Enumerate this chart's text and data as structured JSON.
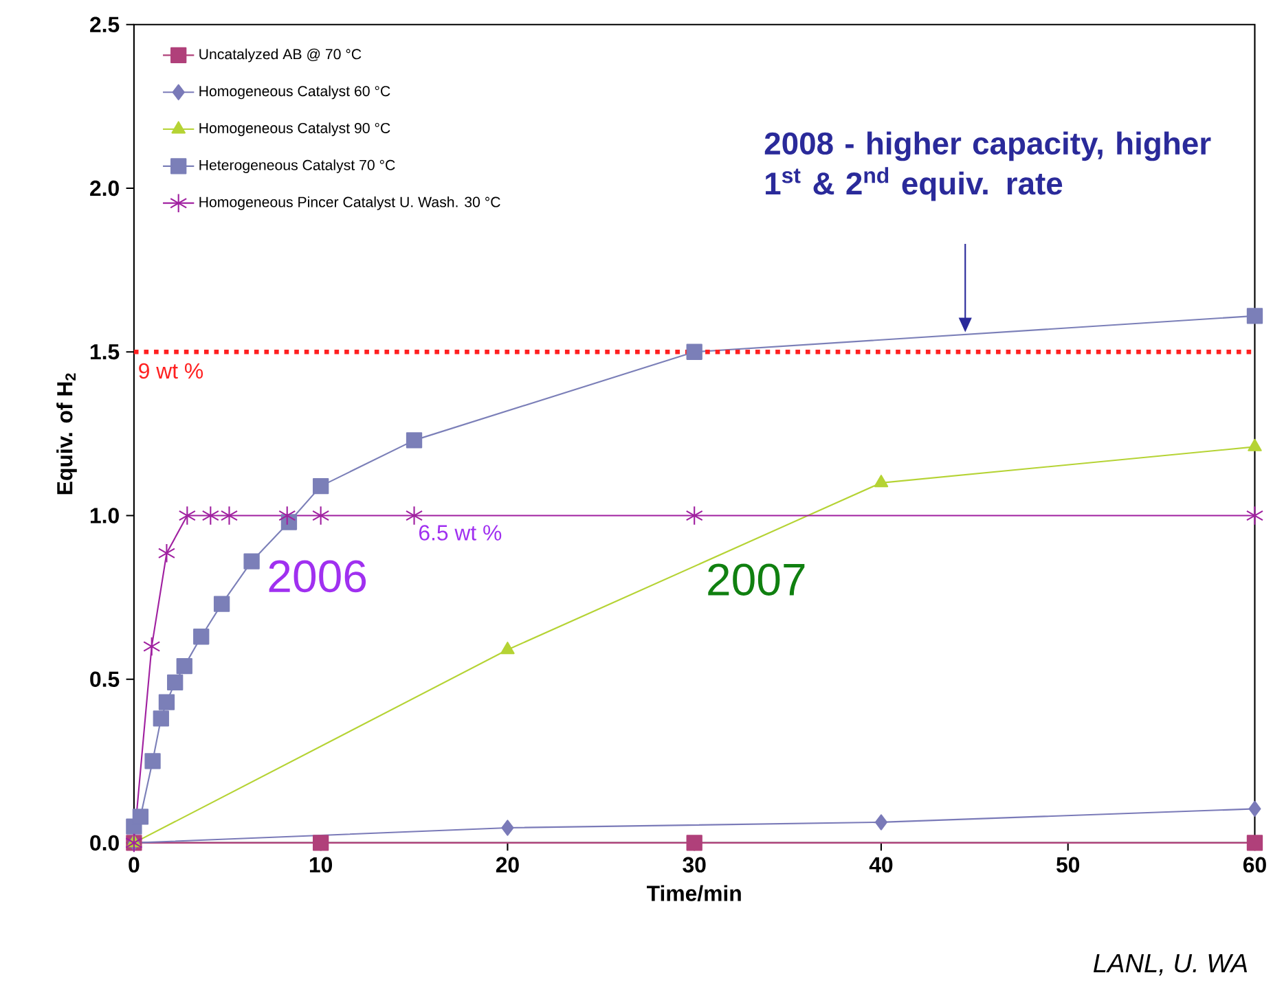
{
  "chart_data": {
    "type": "line",
    "xlabel": "Time/min",
    "ylabel": "Equiv. of H$_{2}$",
    "xlim": [
      0,
      60
    ],
    "ylim": [
      0,
      2.5
    ],
    "xticks": [
      0,
      10,
      20,
      30,
      40,
      50,
      60
    ],
    "yticks": [
      {
        "value": 0,
        "label": "0.0"
      },
      {
        "value": 0.5,
        "label": "0.5"
      },
      {
        "value": 1,
        "label": "1.0"
      },
      {
        "value": 1.5,
        "label": "1.5"
      },
      {
        "value": 2,
        "label": "2.0"
      },
      {
        "value": 2.5,
        "label": "2.5"
      }
    ],
    "grid": false,
    "legend": "top left",
    "line_style": "solid",
    "series": [
      {
        "name": "Uncatalyzed AB @ 70 °C",
        "color": "#b0407a",
        "marker": "square",
        "x": [
          0,
          10,
          30,
          60
        ],
        "values": [
          0,
          0,
          0,
          0
        ]
      },
      {
        "name": "Homogeneous Catalyst 60 °C",
        "color": "#7a7ab8",
        "marker": "diamond",
        "x": [
          0,
          20,
          40,
          60
        ],
        "values": [
          0,
          0.046,
          0.063,
          0.104
        ]
      },
      {
        "name": "Homogeneous Catalyst 90 °C",
        "color": "#b5d334",
        "marker": "triangle",
        "x": [
          0,
          20,
          40,
          60
        ],
        "values": [
          0,
          0.59,
          1.1,
          1.21
        ]
      },
      {
        "name": "Heterogeneous Catalyst 70 °C",
        "color": "#7b7fb8",
        "marker": "square",
        "x": [
          0,
          0.35,
          1.0,
          1.45,
          1.75,
          2.2,
          2.7,
          3.6,
          4.7,
          6.3,
          8.3,
          10,
          15,
          30,
          60
        ],
        "values": [
          0.05,
          0.08,
          0.25,
          0.38,
          0.43,
          0.49,
          0.54,
          0.63,
          0.73,
          0.86,
          0.98,
          1.09,
          1.23,
          1.5,
          1.61
        ]
      },
      {
        "name": "Homogeneous Pincer Catalyst U. Wash. 30 °C",
        "color": "#a020a0",
        "marker": "cross",
        "x": [
          0,
          0.95,
          1.75,
          2.85,
          4.1,
          5.1,
          8.2,
          10,
          15,
          30,
          60
        ],
        "values": [
          0,
          0.6,
          0.885,
          1.0,
          1.0,
          1.0,
          1.0,
          1.0,
          1.0,
          1.0,
          1.0
        ]
      }
    ],
    "ref_lines": [
      {
        "axis": "y",
        "value": 1.5,
        "label": "9 wt %",
        "color": "#ff2020",
        "line_style": "dotted"
      }
    ],
    "annotations": [
      {
        "text": "6.5 wt %",
        "x": 15,
        "y": 1.0
      },
      "2006",
      "2007",
      "2008 - higher capacity, higher 1$^{st}$ & 2$^{nd}$ equiv. rate",
      "LANL, U. WA"
    ]
  }
}
